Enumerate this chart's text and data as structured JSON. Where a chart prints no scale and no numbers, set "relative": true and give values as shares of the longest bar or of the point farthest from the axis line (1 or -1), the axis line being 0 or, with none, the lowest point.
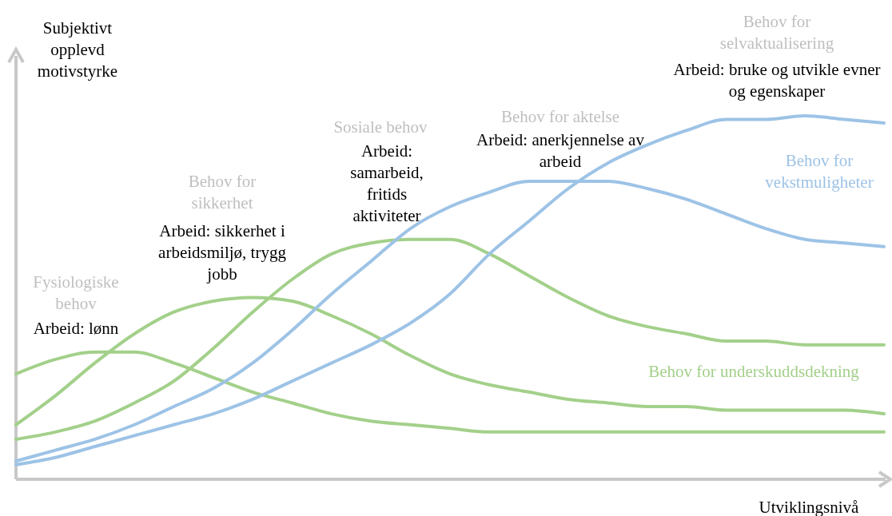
{
  "chart_data": {
    "type": "line",
    "relative": true,
    "xlabel": "Utviklingsnivå",
    "ylabel": "Subjektivt opplevd motivstyrke",
    "categories": [
      null,
      null,
      null,
      null,
      null,
      null,
      null,
      null,
      null,
      null,
      null,
      null,
      null,
      null,
      null,
      null,
      null,
      null,
      null,
      null,
      null,
      null,
      null
    ],
    "series": [
      {
        "color": "#a3d08a",
        "values": [
          0.29,
          0.33,
          0.35,
          0.35,
          0.32,
          0.28,
          0.24,
          0.21,
          0.18,
          0.16,
          0.15,
          0.14,
          0.13,
          0.13,
          0.13,
          0.13,
          0.13,
          0.13,
          0.13,
          0.13,
          0.13,
          0.13,
          0.13
        ]
      },
      {
        "color": "#a3d08a",
        "values": [
          0.15,
          0.23,
          0.32,
          0.4,
          0.46,
          0.49,
          0.5,
          0.49,
          0.45,
          0.4,
          0.34,
          0.29,
          0.26,
          0.24,
          0.22,
          0.21,
          0.2,
          0.2,
          0.19,
          0.19,
          0.19,
          0.19,
          0.18
        ]
      },
      {
        "color": "#a3d08a",
        "values": [
          0.11,
          0.13,
          0.16,
          0.21,
          0.27,
          0.36,
          0.46,
          0.55,
          0.62,
          0.65,
          0.66,
          0.66,
          0.62,
          0.56,
          0.5,
          0.45,
          0.42,
          0.4,
          0.38,
          0.38,
          0.37,
          0.37,
          0.37
        ]
      },
      {
        "color": "#9dc3e6",
        "values": [
          0.05,
          0.08,
          0.11,
          0.15,
          0.2,
          0.25,
          0.32,
          0.41,
          0.51,
          0.6,
          0.69,
          0.75,
          0.79,
          0.82,
          0.82,
          0.82,
          0.8,
          0.77,
          0.73,
          0.69,
          0.66,
          0.65,
          0.64
        ]
      },
      {
        "color": "#9dc3e6",
        "values": [
          0.04,
          0.06,
          0.09,
          0.12,
          0.15,
          0.18,
          0.22,
          0.27,
          0.32,
          0.37,
          0.43,
          0.51,
          0.62,
          0.71,
          0.8,
          0.87,
          0.92,
          0.96,
          0.99,
          0.99,
          1,
          0.99,
          0.98
        ]
      }
    ],
    "annotations": [
      "Fysiologiske behov",
      "Arbeid: lønn",
      "Behov for sikkerhet",
      "Arbeid: sikkerhet i arbeidsmiljø, trygg jobb",
      "Sosiale behov",
      "Arbeid: samarbeid, fritids aktiviteter",
      "Behov for aktelse",
      "Arbeid: anerkjennelse av arbeid",
      "Behov for selvaktualisering",
      "Arbeid: bruke og utvikle evner og egenskaper",
      "Behov for vekstmuligheter",
      "Behov for underskuddsdekning"
    ]
  }
}
